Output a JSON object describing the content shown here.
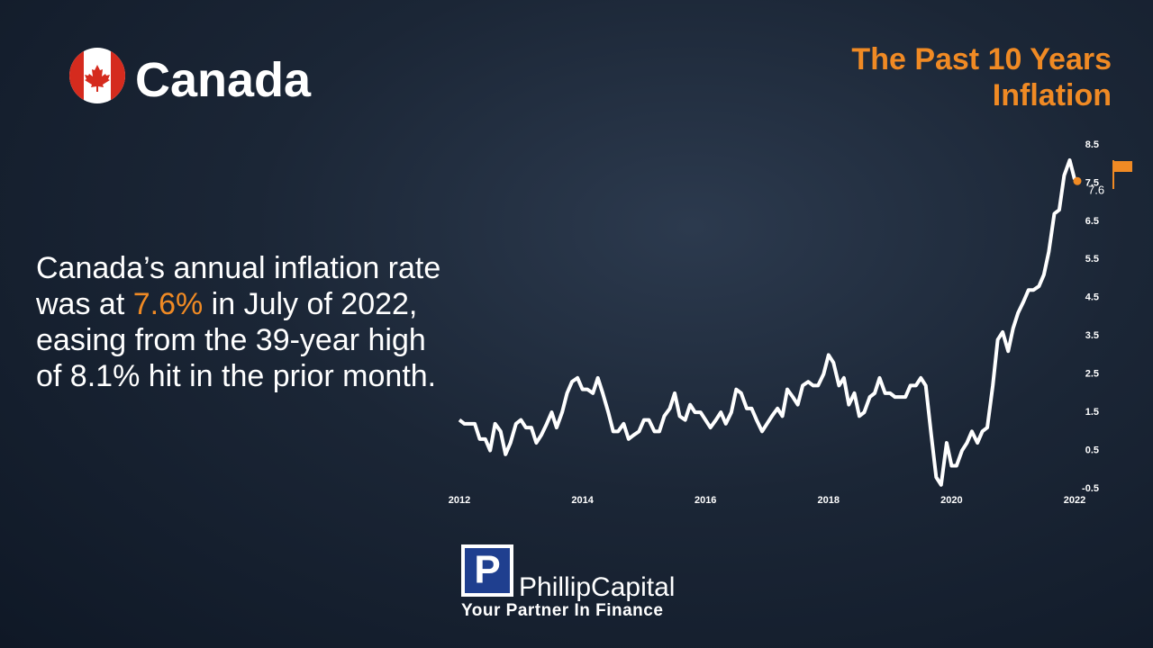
{
  "header": {
    "country": "Canada",
    "title_lines": [
      "The Past 10 Years",
      "Inflation"
    ]
  },
  "body": {
    "parts": [
      "Canada’s annual inflation rate was at ",
      "7.6%",
      " in July of 2022, easing from the 39-year high of 8.1% hit in the prior month."
    ]
  },
  "logo": {
    "mark": "P",
    "name": "PhillipCapital",
    "tagline": "Your Partner In Finance"
  },
  "chart_data": {
    "type": "line",
    "color": "#ffffff",
    "end_marker_color": "#f08a24",
    "xlim": [
      2012,
      2022
    ],
    "xticks": [
      2012,
      2014,
      2016,
      2018,
      2020,
      2022
    ],
    "ylim": [
      -0.5,
      8.5
    ],
    "yticks": [
      -0.5,
      0.5,
      1.5,
      2.5,
      3.5,
      4.5,
      5.5,
      6.5,
      7.5,
      8.5
    ],
    "x": [
      2012,
      2012.08,
      2012.17,
      2012.25,
      2012.33,
      2012.42,
      2012.5,
      2012.58,
      2012.67,
      2012.75,
      2012.83,
      2012.92,
      2013,
      2013.08,
      2013.17,
      2013.25,
      2013.33,
      2013.42,
      2013.5,
      2013.58,
      2013.67,
      2013.75,
      2013.83,
      2013.92,
      2014,
      2014.08,
      2014.17,
      2014.25,
      2014.33,
      2014.42,
      2014.5,
      2014.58,
      2014.67,
      2014.75,
      2014.83,
      2014.92,
      2015,
      2015.08,
      2015.17,
      2015.25,
      2015.33,
      2015.42,
      2015.5,
      2015.58,
      2015.67,
      2015.75,
      2015.83,
      2015.92,
      2016,
      2016.08,
      2016.17,
      2016.25,
      2016.33,
      2016.42,
      2016.5,
      2016.58,
      2016.67,
      2016.75,
      2016.83,
      2016.92,
      2017,
      2017.08,
      2017.17,
      2017.25,
      2017.33,
      2017.42,
      2017.5,
      2017.58,
      2017.67,
      2017.75,
      2017.83,
      2017.92,
      2018,
      2018.08,
      2018.17,
      2018.25,
      2018.33,
      2018.42,
      2018.5,
      2018.58,
      2018.67,
      2018.75,
      2018.83,
      2018.92,
      2019,
      2019.08,
      2019.17,
      2019.25,
      2019.33,
      2019.42,
      2019.5,
      2019.58,
      2019.67,
      2019.75,
      2019.83,
      2019.92,
      2020,
      2020.08,
      2020.17,
      2020.25,
      2020.33,
      2020.42,
      2020.5,
      2020.58,
      2020.67,
      2020.75,
      2020.83,
      2020.92,
      2021,
      2021.08,
      2021.17,
      2021.25,
      2021.33,
      2021.42,
      2021.5,
      2021.58,
      2021.67,
      2021.75,
      2021.83,
      2021.92,
      2022
    ],
    "series": [
      {
        "values": [
          1.3,
          1.2,
          1.2,
          1.2,
          0.8,
          0.8,
          0.5,
          1.2,
          1.0,
          0.4,
          0.7,
          1.2,
          1.3,
          1.1,
          1.1,
          0.7,
          0.9,
          1.2,
          1.5,
          1.1,
          1.5,
          2.0,
          2.3,
          2.4,
          2.1,
          2.1,
          2.0,
          2.4,
          2.0,
          1.5,
          1.0,
          1.0,
          1.2,
          0.8,
          0.9,
          1.0,
          1.3,
          1.3,
          1.0,
          1.0,
          1.4,
          1.6,
          2.0,
          1.4,
          1.3,
          1.7,
          1.5,
          1.5,
          1.3,
          1.1,
          1.3,
          1.5,
          1.2,
          1.5,
          2.1,
          2.0,
          1.6,
          1.6,
          1.3,
          1.0,
          1.2,
          1.4,
          1.6,
          1.4,
          2.1,
          1.9,
          1.7,
          2.2,
          2.3,
          2.2,
          2.2,
          2.5,
          3.0,
          2.8,
          2.2,
          2.4,
          1.7,
          2.0,
          1.4,
          1.5,
          1.9,
          2.0,
          2.4,
          2.0,
          2.0,
          1.9,
          1.9,
          1.9,
          2.2,
          2.2,
          2.4,
          2.2,
          0.9,
          -0.2,
          -0.4,
          0.7,
          0.1,
          0.1,
          0.5,
          0.7,
          1.0,
          0.7,
          1.0,
          1.1,
          2.2,
          3.4,
          3.6,
          3.1,
          3.7,
          4.1,
          4.4,
          4.7,
          4.7,
          4.8,
          5.1,
          5.7,
          6.7,
          6.8,
          7.7,
          8.1,
          7.6
        ]
      }
    ]
  }
}
